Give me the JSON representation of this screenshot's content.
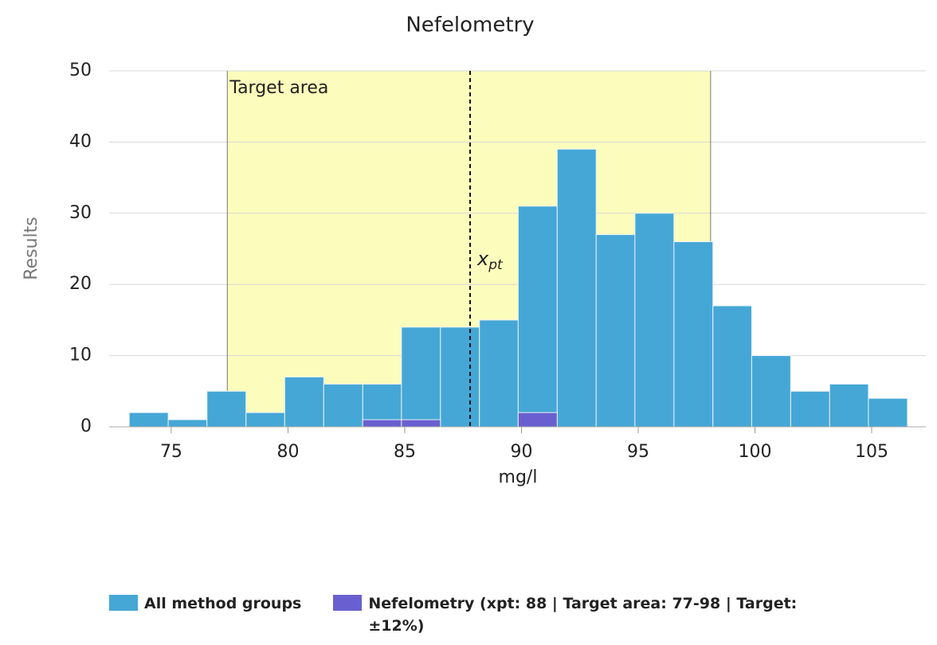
{
  "chart_data": {
    "type": "histogram",
    "title": "Nefelometry",
    "x_label": "mg/l",
    "y_label": "Results",
    "bins": [
      73.2,
      74.87,
      76.53,
      78.2,
      79.86,
      81.53,
      83.2,
      84.86,
      86.53,
      88.2,
      89.86,
      91.53,
      93.2,
      94.86,
      96.53,
      98.2,
      99.86,
      101.53,
      103.2,
      104.86,
      106.53
    ],
    "series": [
      {
        "name": "All method groups",
        "color": "#45a7d6",
        "values": [
          2,
          1,
          5,
          2,
          7,
          6,
          6,
          14,
          14,
          15,
          31,
          39,
          27,
          30,
          26,
          17,
          10,
          5,
          6,
          4
        ]
      },
      {
        "name": "Nefelometry (xpt: 88 | Target area: 77-98 | Target: ±12%)",
        "color": "#6a5fd0",
        "values": [
          0,
          0,
          0,
          0,
          0,
          0,
          1,
          1,
          0,
          0,
          2,
          0,
          0,
          0,
          0,
          0,
          0,
          0,
          0,
          0
        ]
      }
    ],
    "target_area": [
      77.4,
      98.1
    ],
    "target_area_label": "Target area",
    "target_area_color": "#fcfcbc",
    "xpt": 87.8,
    "xpt_label": "x",
    "xpt_label_sub": "pt",
    "xlim": [
      72.34,
      107.32
    ],
    "xticks": [
      75,
      80,
      85,
      90,
      95,
      100,
      105
    ],
    "ylim": [
      0,
      50
    ],
    "yticks": [
      0,
      10,
      20,
      30,
      40,
      50
    ],
    "grid": true
  }
}
